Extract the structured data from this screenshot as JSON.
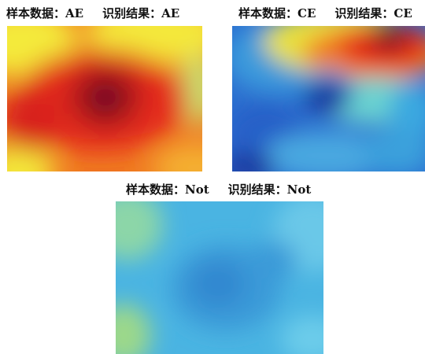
{
  "panels": {
    "ae": {
      "sample_label": "样本数据：AE",
      "result_label": "识别结果：AE"
    },
    "ce": {
      "sample_label": "样本数据：CE",
      "result_label": "识别结果：CE"
    },
    "not": {
      "sample_label": "样本数据：Not",
      "result_label": "识别结果：Not"
    }
  },
  "colors": {
    "dark_red": "#7a1420",
    "red": "#e52a1c",
    "orange": "#f47a20",
    "yellow": "#f4e83a",
    "light_green": "#b8e07a",
    "cyan": "#5ac8e6",
    "light_blue": "#4aa8e0",
    "blue": "#2c6fd0",
    "dark_blue": "#1a3aa0"
  }
}
